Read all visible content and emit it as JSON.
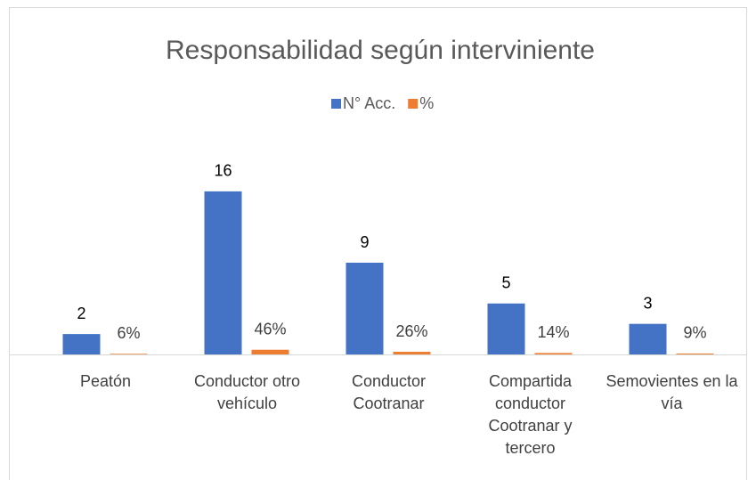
{
  "chart_data": {
    "type": "bar",
    "title": "Responsabilidad según interviniente",
    "categories": [
      "Peatón",
      "Conductor otro vehículo",
      "Conductor Cootranar",
      "Compartida conductor Cootranar y tercero",
      "Semovientes en la vía"
    ],
    "series": [
      {
        "name": "N° Acc.",
        "color": "#4472c4",
        "values": [
          2,
          16,
          9,
          5,
          3
        ]
      },
      {
        "name": "%",
        "color": "#ed7d31",
        "values": [
          0.06,
          0.46,
          0.26,
          0.14,
          0.09
        ],
        "value_labels": [
          "6%",
          "46%",
          "26%",
          "14%",
          "9%"
        ]
      }
    ],
    "ylim": [
      0,
      18
    ],
    "legend": "top"
  }
}
